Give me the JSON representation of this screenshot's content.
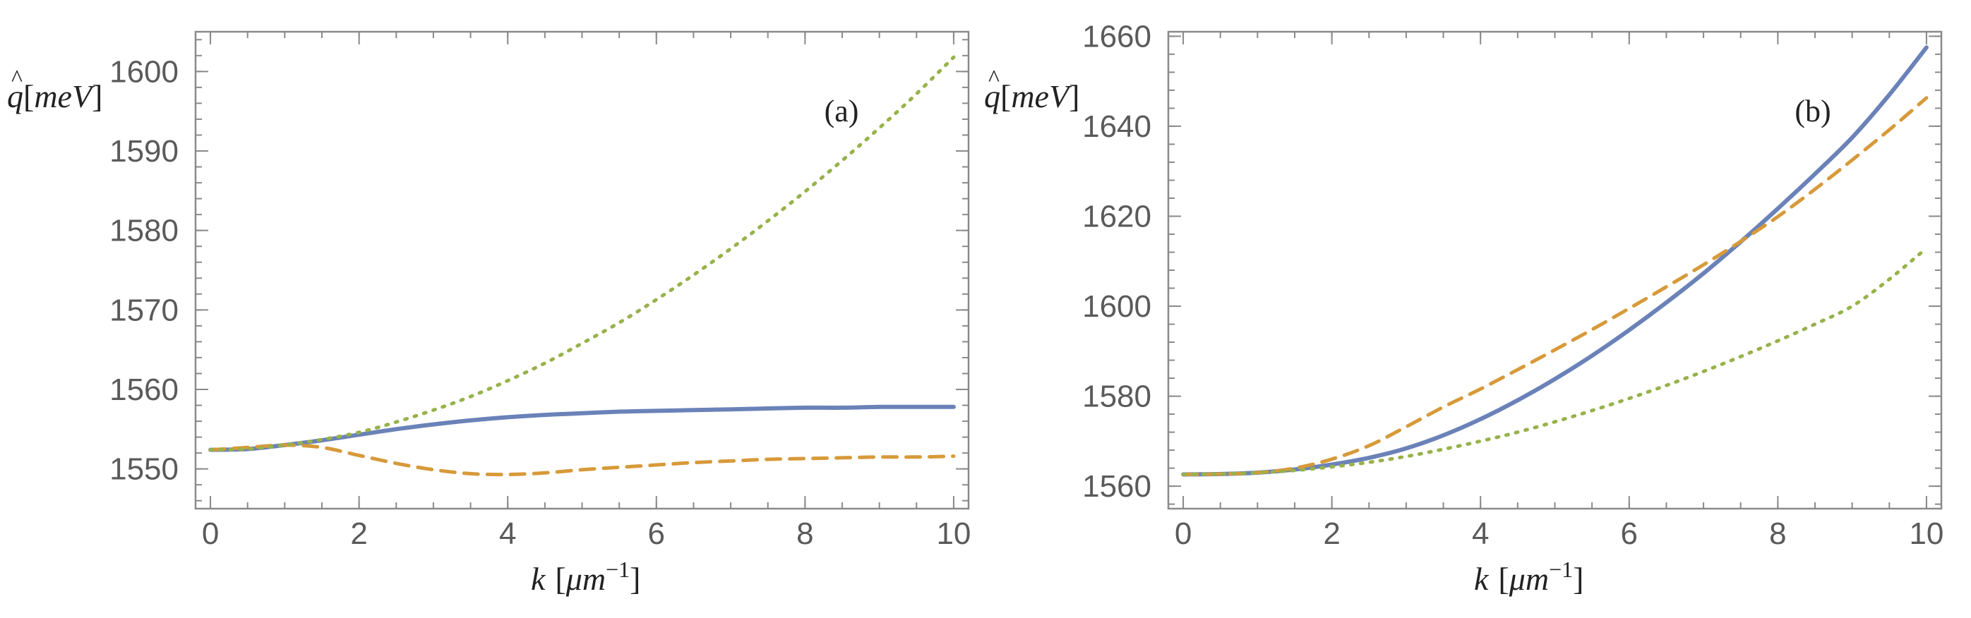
{
  "chart_data": [
    {
      "type": "line",
      "panel_label": "(a)",
      "xlabel": {
        "var": "k",
        "open": "[",
        "unit": "μm",
        "exp": "−1",
        "close": "]"
      },
      "ylabel": {
        "hat": "q",
        "open": "[",
        "unit": "meV",
        "close": "]"
      },
      "xlim": [
        -0.2,
        10.2
      ],
      "ylim": [
        1545,
        1605
      ],
      "xticks": [
        0,
        2,
        4,
        6,
        8,
        10
      ],
      "yticks": [
        1550,
        1560,
        1570,
        1580,
        1590,
        1600
      ],
      "x": [
        0,
        0.5,
        1,
        1.5,
        2,
        2.5,
        3,
        3.5,
        4,
        4.5,
        5,
        5.5,
        6,
        6.5,
        7,
        7.5,
        8,
        8.5,
        9,
        9.5,
        10
      ],
      "series": [
        {
          "name": "solid",
          "color": "#6a82b8",
          "style": "solid",
          "values": [
            1552.4,
            1552.5,
            1553.0,
            1553.6,
            1554.3,
            1555.0,
            1555.6,
            1556.1,
            1556.5,
            1556.8,
            1557.0,
            1557.2,
            1557.3,
            1557.4,
            1557.5,
            1557.6,
            1557.7,
            1557.7,
            1557.8,
            1557.8,
            1557.8
          ]
        },
        {
          "name": "dashed",
          "color": "#d79a3a",
          "style": "dashed",
          "values": [
            1552.4,
            1552.7,
            1553.0,
            1552.7,
            1551.7,
            1550.7,
            1549.9,
            1549.4,
            1549.3,
            1549.5,
            1549.9,
            1550.2,
            1550.5,
            1550.8,
            1551.0,
            1551.2,
            1551.3,
            1551.4,
            1551.5,
            1551.5,
            1551.6
          ]
        },
        {
          "name": "dotted",
          "color": "#97b24a",
          "style": "dotted",
          "values": [
            1552.4,
            1552.5,
            1553.0,
            1553.7,
            1554.6,
            1555.9,
            1557.4,
            1559.1,
            1561.1,
            1563.3,
            1565.8,
            1568.4,
            1571.3,
            1574.4,
            1577.7,
            1581.2,
            1584.9,
            1588.8,
            1592.9,
            1597.2,
            1601.8
          ]
        }
      ]
    },
    {
      "type": "line",
      "panel_label": "(b)",
      "xlabel": {
        "var": "k",
        "open": "[",
        "unit": "μm",
        "exp": "−1",
        "close": "]"
      },
      "ylabel": {
        "hat": "q",
        "open": "[",
        "unit": "meV",
        "close": "]"
      },
      "xlim": [
        -0.2,
        10.2
      ],
      "ylim": [
        1555,
        1661
      ],
      "xticks": [
        0,
        2,
        4,
        6,
        8,
        10
      ],
      "yticks": [
        1560,
        1580,
        1600,
        1620,
        1640,
        1660
      ],
      "x": [
        0,
        0.5,
        1,
        1.5,
        2,
        2.5,
        3,
        3.5,
        4,
        4.5,
        5,
        5.5,
        6,
        6.5,
        7,
        7.5,
        8,
        8.5,
        9,
        9.5,
        10
      ],
      "series": [
        {
          "name": "solid",
          "color": "#6a82b8",
          "style": "solid",
          "values": [
            1562.6,
            1562.7,
            1563.0,
            1563.7,
            1564.8,
            1566.3,
            1568.4,
            1571.3,
            1574.9,
            1579.1,
            1583.8,
            1589.0,
            1594.7,
            1600.8,
            1607.3,
            1614.3,
            1621.7,
            1629.4,
            1637.5,
            1647.0,
            1657.5
          ]
        },
        {
          "name": "dashed",
          "color": "#d79a3a",
          "style": "dashed",
          "values": [
            1562.6,
            1562.7,
            1563.0,
            1564.0,
            1566.0,
            1569.0,
            1573.2,
            1577.6,
            1581.6,
            1585.9,
            1590.3,
            1594.8,
            1599.5,
            1604.3,
            1609.2,
            1614.4,
            1619.9,
            1626.0,
            1632.5,
            1639.2,
            1646.3
          ]
        },
        {
          "name": "dotted",
          "color": "#97b24a",
          "style": "dotted",
          "values": [
            1562.6,
            1562.7,
            1563.0,
            1563.5,
            1564.3,
            1565.3,
            1566.6,
            1568.2,
            1570.0,
            1572.0,
            1574.3,
            1576.8,
            1579.5,
            1582.4,
            1585.5,
            1588.8,
            1592.3,
            1596.0,
            1600.0,
            1606.0,
            1612.9
          ]
        }
      ]
    }
  ]
}
